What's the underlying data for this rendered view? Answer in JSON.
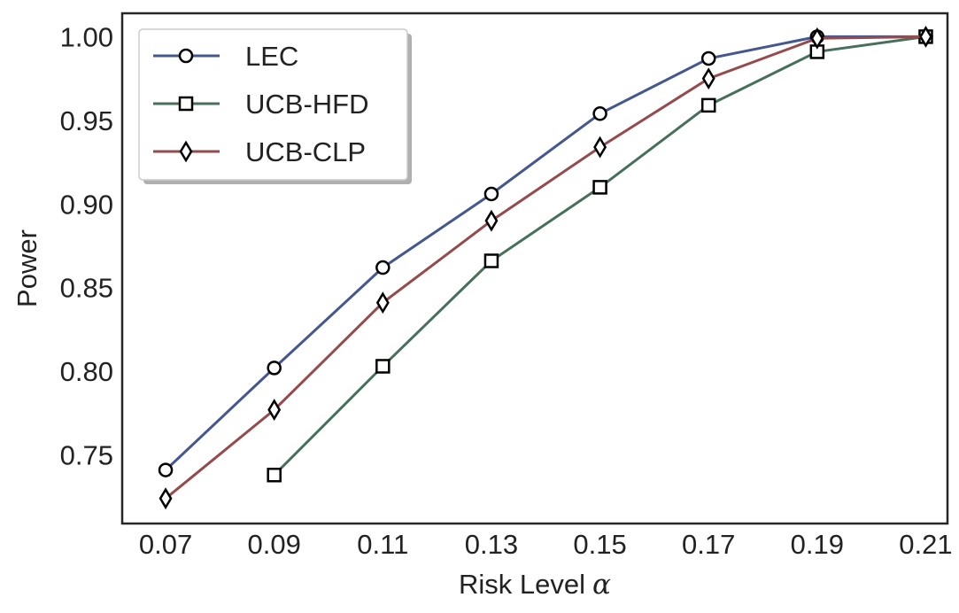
{
  "chart_data": {
    "type": "line",
    "xlabel": "Risk Level",
    "xlabel_symbol": "α",
    "ylabel": "Power",
    "x": [
      0.07,
      0.09,
      0.11,
      0.13,
      0.15,
      0.17,
      0.19,
      0.21
    ],
    "x_tick_labels": [
      "0.07",
      "0.09",
      "0.11",
      "0.13",
      "0.15",
      "0.17",
      "0.19",
      "0.21"
    ],
    "y_ticks": [
      0.75,
      0.8,
      0.85,
      0.9,
      0.95,
      1.0
    ],
    "y_tick_labels": [
      "0.75",
      "0.80",
      "0.85",
      "0.90",
      "0.95",
      "1.00"
    ],
    "xlim": [
      0.062,
      0.214
    ],
    "ylim": [
      0.709,
      1.014
    ],
    "grid": false,
    "legend_position": "top-left",
    "series": [
      {
        "name": "LEC",
        "marker": "circle",
        "color": "#44578e",
        "x": [
          0.07,
          0.09,
          0.11,
          0.13,
          0.15,
          0.17,
          0.19,
          0.21
        ],
        "values": [
          0.741,
          0.802,
          0.862,
          0.906,
          0.954,
          0.987,
          1.0,
          1.0
        ]
      },
      {
        "name": "UCB-HFD",
        "marker": "square",
        "color": "#467059",
        "x": [
          0.09,
          0.11,
          0.13,
          0.15,
          0.17,
          0.19,
          0.21
        ],
        "values": [
          0.738,
          0.803,
          0.866,
          0.91,
          0.959,
          0.991,
          1.0
        ]
      },
      {
        "name": "UCB-CLP",
        "marker": "diamond",
        "color": "#954b4c",
        "x": [
          0.07,
          0.09,
          0.11,
          0.13,
          0.15,
          0.17,
          0.19,
          0.21
        ],
        "values": [
          0.724,
          0.777,
          0.841,
          0.89,
          0.934,
          0.975,
          0.999,
          1.0
        ]
      }
    ]
  }
}
